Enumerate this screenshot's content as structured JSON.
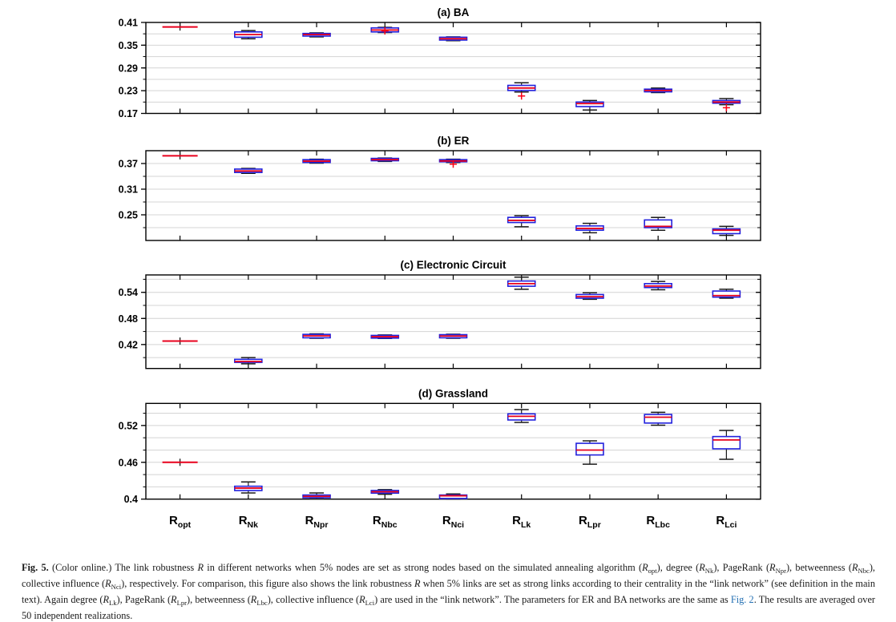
{
  "figure": {
    "caption_segments": [
      {
        "t": "Fig. 5.",
        "s": "b"
      },
      {
        "t": " (Color online.) The link robustness ",
        "s": "n"
      },
      {
        "t": "R",
        "s": "i"
      },
      {
        "t": " in different networks when 5% nodes are set as strong nodes based on the simulated annealing algorithm (",
        "s": "n"
      },
      {
        "t": "R",
        "s": "i"
      },
      {
        "t": "opt",
        "s": "sub"
      },
      {
        "t": "), degree (",
        "s": "n"
      },
      {
        "t": "R",
        "s": "i"
      },
      {
        "t": "Nk",
        "s": "sub"
      },
      {
        "t": "), PageRank (",
        "s": "n"
      },
      {
        "t": "R",
        "s": "i"
      },
      {
        "t": "Npr",
        "s": "sub"
      },
      {
        "t": "), betweenness (",
        "s": "n"
      },
      {
        "t": "R",
        "s": "i"
      },
      {
        "t": "Nbc",
        "s": "sub"
      },
      {
        "t": "), collective influence (",
        "s": "n"
      },
      {
        "t": "R",
        "s": "i"
      },
      {
        "t": "Nci",
        "s": "sub"
      },
      {
        "t": "), respectively. For comparison, this figure also shows the link robustness ",
        "s": "n"
      },
      {
        "t": "R",
        "s": "i"
      },
      {
        "t": " when 5% links are set as strong links according to their centrality in the “link network” (see definition in the main text). Again degree (",
        "s": "n"
      },
      {
        "t": "R",
        "s": "i"
      },
      {
        "t": "Lk",
        "s": "sub"
      },
      {
        "t": "), PageRank (",
        "s": "n"
      },
      {
        "t": "R",
        "s": "i"
      },
      {
        "t": "Lpr",
        "s": "sub"
      },
      {
        "t": "), betweenness (",
        "s": "n"
      },
      {
        "t": "R",
        "s": "i"
      },
      {
        "t": "Lbc",
        "s": "sub"
      },
      {
        "t": "), collective influence (",
        "s": "n"
      },
      {
        "t": "R",
        "s": "i"
      },
      {
        "t": "Lci",
        "s": "sub"
      },
      {
        "t": ") are used in the “link network”. The parameters for ER and BA networks are the same as ",
        "s": "n"
      },
      {
        "t": "Fig. 2",
        "s": "link"
      },
      {
        "t": ". The results are averaged over 50 independent realizations.",
        "s": "n"
      }
    ]
  },
  "colors": {
    "box_border": "#2121dd",
    "median": "#e8001c",
    "whisker": "#1a1a1a",
    "outlier": "#fb0016",
    "gridline": "#d4d4d4",
    "frame": "#000000",
    "link": "#2470b3"
  },
  "x_axis": {
    "labels": [
      {
        "base": "R",
        "sub": "opt"
      },
      {
        "base": "R",
        "sub": "Nk"
      },
      {
        "base": "R",
        "sub": "Npr"
      },
      {
        "base": "R",
        "sub": "Nbc"
      },
      {
        "base": "R",
        "sub": "Nci"
      },
      {
        "base": "R",
        "sub": "Lk"
      },
      {
        "base": "R",
        "sub": "Lpr"
      },
      {
        "base": "R",
        "sub": "Lbc"
      },
      {
        "base": "R",
        "sub": "Lci"
      }
    ]
  },
  "chart_data": [
    {
      "type": "boxplot",
      "title": "(a) BA",
      "ylim": [
        0.17,
        0.41
      ],
      "yticks": [
        {
          "value": 0.17,
          "label": "0.17"
        },
        {
          "value": 0.23,
          "label": "0.23"
        },
        {
          "value": 0.29,
          "label": "0.29"
        },
        {
          "value": 0.35,
          "label": "0.35"
        },
        {
          "value": 0.41,
          "label": "0.41"
        }
      ],
      "minor_gridlines": [
        0.2,
        0.23,
        0.26,
        0.29,
        0.32,
        0.35,
        0.38
      ],
      "categories": [
        "R_opt",
        "R_Nk",
        "R_Npr",
        "R_Nbc",
        "R_Nci",
        "R_Lk",
        "R_Lpr",
        "R_Lbc",
        "R_Lci"
      ],
      "boxes": [
        {
          "opt": true,
          "whislo": 0.3975,
          "q1": 0.398,
          "med": 0.398,
          "q3": 0.3985,
          "whishi": 0.399,
          "fliers": []
        },
        {
          "whislo": 0.367,
          "q1": 0.371,
          "med": 0.378,
          "q3": 0.385,
          "whishi": 0.3885,
          "fliers": []
        },
        {
          "whislo": 0.372,
          "q1": 0.374,
          "med": 0.378,
          "q3": 0.381,
          "whishi": 0.3825,
          "fliers": []
        },
        {
          "whislo": 0.3835,
          "q1": 0.385,
          "med": 0.39,
          "q3": 0.3955,
          "whishi": 0.397,
          "fliers": [
            0.3875
          ]
        },
        {
          "whislo": 0.362,
          "q1": 0.3635,
          "med": 0.367,
          "q3": 0.371,
          "whishi": 0.372,
          "fliers": []
        },
        {
          "whislo": 0.2265,
          "q1": 0.2305,
          "med": 0.237,
          "q3": 0.244,
          "whishi": 0.251,
          "fliers": [
            0.216
          ]
        },
        {
          "whislo": 0.179,
          "q1": 0.188,
          "med": 0.196,
          "q3": 0.2,
          "whishi": 0.204,
          "fliers": []
        },
        {
          "whislo": 0.225,
          "q1": 0.227,
          "med": 0.2305,
          "q3": 0.234,
          "whishi": 0.237,
          "fliers": []
        },
        {
          "whislo": 0.193,
          "q1": 0.197,
          "med": 0.2,
          "q3": 0.204,
          "whishi": 0.209,
          "fliers": [
            0.185
          ]
        }
      ]
    },
    {
      "type": "boxplot",
      "title": "(b) ER",
      "ylim": [
        0.19,
        0.4
      ],
      "yticks": [
        {
          "value": 0.25,
          "label": "0.25"
        },
        {
          "value": 0.31,
          "label": "0.31"
        },
        {
          "value": 0.37,
          "label": "0.37"
        }
      ],
      "minor_gridlines": [
        0.22,
        0.25,
        0.28,
        0.31,
        0.34,
        0.37
      ],
      "categories": [
        "R_opt",
        "R_Nk",
        "R_Npr",
        "R_Nbc",
        "R_Nci",
        "R_Lk",
        "R_Lpr",
        "R_Lbc",
        "R_Lci"
      ],
      "boxes": [
        {
          "opt": true,
          "whislo": 0.3875,
          "q1": 0.388,
          "med": 0.388,
          "q3": 0.3885,
          "whishi": 0.389,
          "fliers": []
        },
        {
          "whislo": 0.347,
          "q1": 0.349,
          "med": 0.3525,
          "q3": 0.357,
          "whishi": 0.3585,
          "fliers": []
        },
        {
          "whislo": 0.371,
          "q1": 0.3725,
          "med": 0.3755,
          "q3": 0.379,
          "whishi": 0.38,
          "fliers": []
        },
        {
          "whislo": 0.375,
          "q1": 0.3765,
          "med": 0.379,
          "q3": 0.382,
          "whishi": 0.383,
          "fliers": []
        },
        {
          "whislo": 0.3725,
          "q1": 0.374,
          "med": 0.376,
          "q3": 0.379,
          "whishi": 0.38,
          "fliers": [
            0.3685
          ]
        },
        {
          "whislo": 0.222,
          "q1": 0.232,
          "med": 0.237,
          "q3": 0.244,
          "whishi": 0.248,
          "fliers": []
        },
        {
          "whislo": 0.208,
          "q1": 0.214,
          "med": 0.218,
          "q3": 0.224,
          "whishi": 0.23,
          "fliers": []
        },
        {
          "whislo": 0.214,
          "q1": 0.22,
          "med": 0.223,
          "q3": 0.238,
          "whishi": 0.244,
          "fliers": []
        },
        {
          "whislo": 0.202,
          "q1": 0.206,
          "med": 0.214,
          "q3": 0.217,
          "whishi": 0.223,
          "fliers": []
        }
      ]
    },
    {
      "type": "boxplot",
      "title": "(c) Electronic Circuit",
      "ylim": [
        0.365,
        0.58
      ],
      "yticks": [
        {
          "value": 0.42,
          "label": "0.42"
        },
        {
          "value": 0.48,
          "label": "0.48"
        },
        {
          "value": 0.54,
          "label": "0.54"
        }
      ],
      "minor_gridlines": [
        0.39,
        0.42,
        0.45,
        0.48,
        0.51,
        0.54,
        0.57
      ],
      "categories": [
        "R_opt",
        "R_Nk",
        "R_Npr",
        "R_Nbc",
        "R_Nci",
        "R_Lk",
        "R_Lpr",
        "R_Lbc",
        "R_Lci"
      ],
      "boxes": [
        {
          "opt": true,
          "whislo": 0.4275,
          "q1": 0.428,
          "med": 0.428,
          "q3": 0.4285,
          "whishi": 0.429,
          "fliers": []
        },
        {
          "whislo": 0.3757,
          "q1": 0.379,
          "med": 0.381,
          "q3": 0.386,
          "whishi": 0.39,
          "fliers": []
        },
        {
          "whislo": 0.4345,
          "q1": 0.4355,
          "med": 0.44,
          "q3": 0.4434,
          "whishi": 0.4445,
          "fliers": []
        },
        {
          "whislo": 0.434,
          "q1": 0.4348,
          "med": 0.438,
          "q3": 0.441,
          "whishi": 0.442,
          "fliers": []
        },
        {
          "whislo": 0.4345,
          "q1": 0.4355,
          "med": 0.4395,
          "q3": 0.4427,
          "whishi": 0.4437,
          "fliers": []
        },
        {
          "whislo": 0.547,
          "q1": 0.554,
          "med": 0.56,
          "q3": 0.566,
          "whishi": 0.575,
          "fliers": []
        },
        {
          "whislo": 0.524,
          "q1": 0.5265,
          "med": 0.53,
          "q3": 0.535,
          "whishi": 0.539,
          "fliers": []
        },
        {
          "whislo": 0.546,
          "q1": 0.551,
          "med": 0.5545,
          "q3": 0.56,
          "whishi": 0.565,
          "fliers": []
        },
        {
          "whislo": 0.5265,
          "q1": 0.529,
          "med": 0.5326,
          "q3": 0.543,
          "whishi": 0.547,
          "fliers": []
        }
      ]
    },
    {
      "type": "boxplot",
      "title": "(d) Grassland",
      "ylim": [
        0.4,
        0.556
      ],
      "yticks": [
        {
          "value": 0.4,
          "label": "0.4"
        },
        {
          "value": 0.46,
          "label": "0.46"
        },
        {
          "value": 0.52,
          "label": "0.52"
        }
      ],
      "minor_gridlines": [
        0.42,
        0.44,
        0.46,
        0.48,
        0.5,
        0.52,
        0.54
      ],
      "categories": [
        "R_opt",
        "R_Nk",
        "R_Npr",
        "R_Nbc",
        "R_Nci",
        "R_Lk",
        "R_Lpr",
        "R_Lbc",
        "R_Lci"
      ],
      "boxes": [
        {
          "opt": true,
          "whislo": 0.4595,
          "q1": 0.46,
          "med": 0.46,
          "q3": 0.4605,
          "whishi": 0.461,
          "fliers": []
        },
        {
          "whislo": 0.41,
          "q1": 0.414,
          "med": 0.418,
          "q3": 0.421,
          "whishi": 0.428,
          "fliers": []
        },
        {
          "whislo": 0.4005,
          "q1": 0.4023,
          "med": 0.4045,
          "q3": 0.4067,
          "whishi": 0.41,
          "fliers": []
        },
        {
          "whislo": 0.408,
          "q1": 0.4098,
          "med": 0.412,
          "q3": 0.4141,
          "whishi": 0.4155,
          "fliers": []
        },
        {
          "whislo": 0.4,
          "q1": 0.401,
          "med": 0.4054,
          "q3": 0.4067,
          "whishi": 0.4085,
          "fliers": []
        },
        {
          "whislo": 0.525,
          "q1": 0.529,
          "med": 0.535,
          "q3": 0.539,
          "whishi": 0.546,
          "fliers": []
        },
        {
          "whislo": 0.457,
          "q1": 0.472,
          "med": 0.48,
          "q3": 0.491,
          "whishi": 0.495,
          "fliers": []
        },
        {
          "whislo": 0.5205,
          "q1": 0.524,
          "med": 0.5335,
          "q3": 0.538,
          "whishi": 0.5415,
          "fliers": []
        },
        {
          "whislo": 0.465,
          "q1": 0.482,
          "med": 0.4965,
          "q3": 0.502,
          "whishi": 0.512,
          "fliers": []
        }
      ]
    }
  ]
}
